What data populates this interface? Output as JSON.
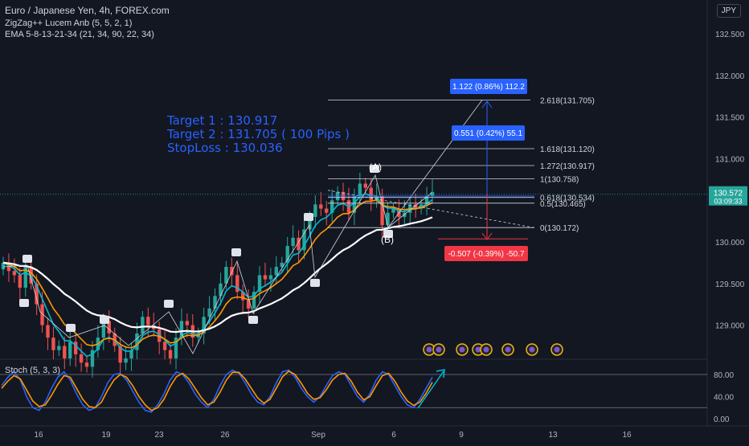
{
  "header": {
    "title": "Euro / Japanese Yen, 4h, FOREX.com",
    "indicator1": "ZigZag++ Lucem Anb (5, 5, 2, 1)",
    "indicator2": "EMA 5-8-13-21-34 (21, 34, 90, 22, 34)",
    "currency": "JPY"
  },
  "annotations": {
    "target1": "Target 1 : 130.917",
    "target2": "Target 2 : 131.705 ( 100 Pips )",
    "stoploss": "StopLoss : 130.036",
    "wave_a": "(A)",
    "wave_b": "(B)"
  },
  "price_tag": {
    "price": "130.572",
    "countdown": "03:09:33",
    "color": "#26a69a"
  },
  "measure_boxes": [
    {
      "text": "1.122 (0.86%) 112.2",
      "color": "#2962ff"
    },
    {
      "text": "0.551 (0.42%) 55.1",
      "color": "#2962ff"
    },
    {
      "text": "-0.507 (-0.39%) -50.7",
      "color": "#f23645"
    }
  ],
  "fib_levels": [
    {
      "ratio": "2.618",
      "price": 131.705,
      "label": "2.618(131.705)"
    },
    {
      "ratio": "1.618",
      "price": 131.12,
      "label": "1.618(131.120)"
    },
    {
      "ratio": "1.272",
      "price": 130.917,
      "label": "1.272(130.917)"
    },
    {
      "ratio": "1",
      "price": 130.758,
      "label": "1(130.758)"
    },
    {
      "ratio": "0.618",
      "price": 130.534,
      "label": "0.618(130.534)"
    },
    {
      "ratio": "0.5",
      "price": 130.465,
      "label": "0.5(130.465)"
    },
    {
      "ratio": "0",
      "price": 130.172,
      "label": "0(130.172)"
    }
  ],
  "stoch_label": "Stoch (5, 3, 3)",
  "colors": {
    "background": "#131722",
    "up": "#26a69a",
    "down": "#ef5350",
    "ema_fast": "#00bcd4",
    "ema_mid": "#ff9800",
    "ema_slow": "#ffffff",
    "stoch_k": "#2962ff",
    "stoch_d": "#ff9800",
    "accent": "#2962ff"
  },
  "chart_data": [
    {
      "type": "candlestick",
      "title": "Euro / Japanese Yen, 4h, FOREX.com",
      "x_tick_labels": [
        "16",
        "19",
        "23",
        "26",
        "Sep",
        "6",
        "9",
        "13",
        "16"
      ],
      "y_tick_labels": [
        "132.500",
        "132.000",
        "131.500",
        "131.000",
        "130.500",
        "130.000",
        "129.500",
        "129.000"
      ],
      "y_ticks": [
        132.5,
        132.0,
        131.5,
        131.0,
        130.5,
        130.0,
        129.5,
        129.0
      ],
      "ylim": [
        128.5,
        132.9
      ],
      "close_series": [
        129.75,
        129.65,
        129.6,
        129.45,
        129.7,
        129.5,
        129.25,
        129.0,
        128.85,
        128.7,
        128.75,
        128.6,
        128.8,
        128.65,
        128.55,
        128.5,
        128.7,
        128.85,
        129.05,
        128.9,
        128.75,
        128.55,
        128.6,
        128.7,
        128.9,
        129.1,
        129.0,
        128.95,
        128.8,
        128.7,
        128.6,
        128.85,
        129.05,
        129.0,
        128.85,
        128.9,
        129.1,
        129.2,
        129.35,
        129.5,
        129.7,
        129.6,
        129.4,
        129.3,
        129.2,
        129.4,
        129.6,
        129.55,
        129.6,
        129.7,
        129.75,
        129.95,
        130.05,
        129.9,
        130.15,
        130.3,
        130.45,
        130.4,
        130.35,
        130.5,
        130.6,
        130.5,
        130.35,
        130.55,
        130.7,
        130.65,
        130.5,
        130.55,
        130.2,
        130.35,
        130.4,
        130.3,
        130.35,
        130.45,
        130.4,
        130.45,
        130.55,
        130.6
      ],
      "ema_series": [
        {
          "name": "EMA 21",
          "color": "#00bcd4",
          "start": 129.55,
          "end": 130.5
        },
        {
          "name": "EMA 34",
          "color": "#ff9800",
          "start": 129.45,
          "end": 130.35
        },
        {
          "name": "EMA 90",
          "color": "#ffffff",
          "start": 129.75,
          "end": 129.8
        }
      ],
      "last_price": 130.572
    },
    {
      "type": "line",
      "title": "Stoch (5, 3, 3)",
      "y_tick_labels": [
        "80.00",
        "40.00",
        "0.00"
      ],
      "y_ticks": [
        80,
        40,
        0
      ],
      "ylim": [
        -5,
        100
      ],
      "hlines": [
        80,
        20
      ],
      "series": [
        {
          "name": "%K",
          "color": "#2962ff",
          "values": [
            60,
            75,
            85,
            70,
            40,
            20,
            15,
            30,
            55,
            75,
            85,
            70,
            45,
            25,
            15,
            20,
            40,
            65,
            80,
            82,
            70,
            50,
            30,
            15,
            12,
            25,
            45,
            70,
            85,
            80,
            65,
            45,
            30,
            20,
            35,
            60,
            80,
            88,
            82,
            65,
            45,
            30,
            25,
            40,
            65,
            85,
            88,
            75,
            55,
            40,
            30,
            40,
            60,
            78,
            85,
            80,
            60,
            40,
            30,
            45,
            70,
            85,
            80,
            60,
            40,
            25,
            20,
            35,
            55,
            75
          ]
        },
        {
          "name": "%D",
          "color": "#ff9800",
          "values": [
            55,
            68,
            78,
            72,
            52,
            32,
            22,
            25,
            42,
            62,
            78,
            75,
            55,
            35,
            22,
            20,
            30,
            52,
            70,
            80,
            75,
            60,
            40,
            25,
            15,
            20,
            35,
            58,
            76,
            82,
            72,
            55,
            38,
            25,
            30,
            48,
            70,
            84,
            84,
            72,
            55,
            38,
            28,
            35,
            55,
            76,
            86,
            80,
            64,
            46,
            35,
            38,
            52,
            70,
            80,
            82,
            68,
            48,
            34,
            40,
            60,
            78,
            82,
            68,
            48,
            32,
            24,
            30,
            46,
            66
          ]
        }
      ]
    }
  ]
}
